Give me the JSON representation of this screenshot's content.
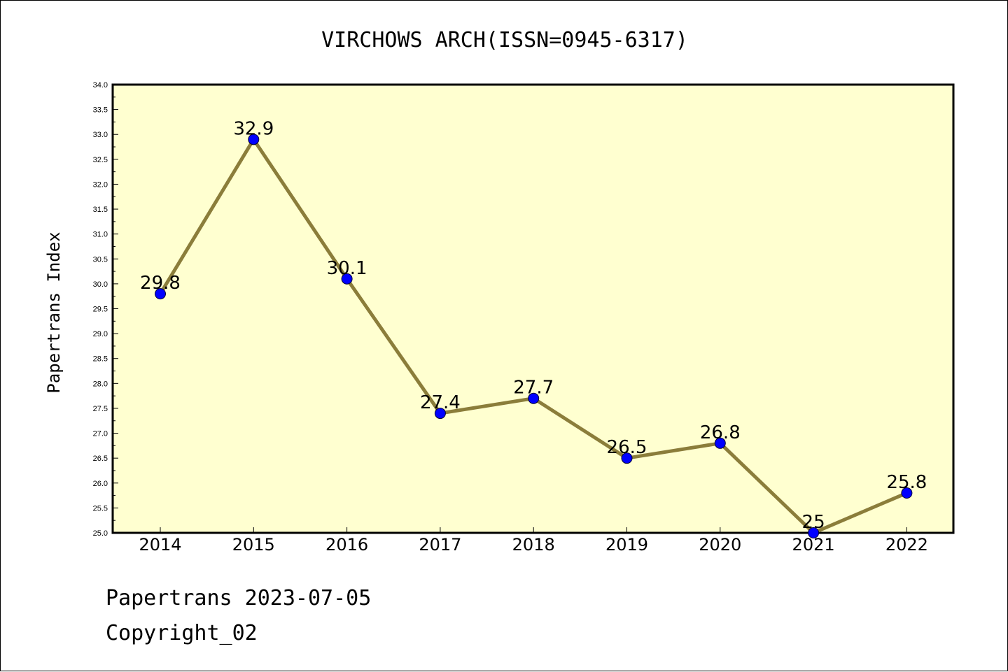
{
  "chart_data": {
    "type": "line",
    "title": "VIRCHOWS ARCH(ISSN=0945-6317)",
    "ylabel": "Papertrans Index",
    "xlabel": "",
    "categories": [
      "2014",
      "2015",
      "2016",
      "2017",
      "2018",
      "2019",
      "2020",
      "2021",
      "2022"
    ],
    "series": [
      {
        "values": [
          29.8,
          32.9,
          30.1,
          27.4,
          27.7,
          26.5,
          26.8,
          25.0,
          25.8
        ],
        "labels": [
          "29.8",
          "32.9",
          "30.1",
          "27.4",
          "27.7",
          "26.5",
          "26.8",
          "25",
          "25.8"
        ]
      }
    ],
    "ylim": [
      25.0,
      34.0
    ],
    "ytick_step": 0.5,
    "grid": false,
    "legend": "none",
    "colors": {
      "plot_background": "#ffffd0",
      "line": "#8b7d3a",
      "marker": "#0000ff"
    }
  },
  "footer": {
    "line1": "Papertrans 2023-07-05",
    "line2": "Copyright_02"
  }
}
